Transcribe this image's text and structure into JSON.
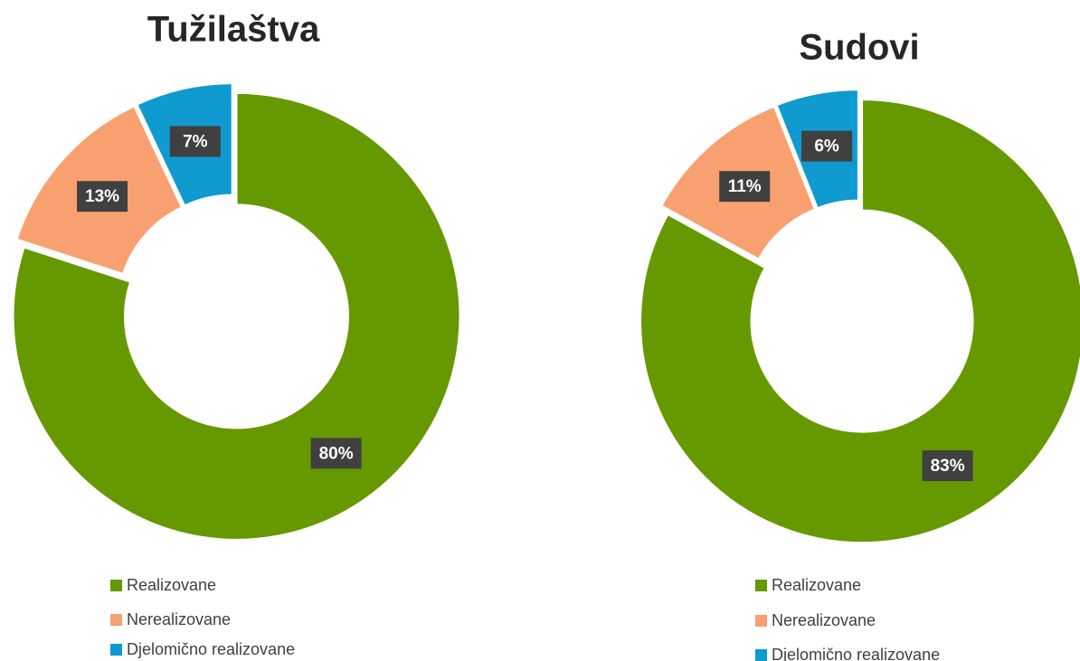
{
  "chart_data": [
    {
      "type": "pie",
      "title": "Tužilaštva",
      "categories": [
        "Realizovane",
        "Nerealizovane",
        "Djelomično realizovane"
      ],
      "values": [
        80,
        13,
        7
      ],
      "value_labels": [
        "80%",
        "13%",
        "7%"
      ],
      "colors": [
        "#669900",
        "#f9a070",
        "#0f9ad0"
      ],
      "donut": true
    },
    {
      "type": "pie",
      "title": "Sudovi",
      "categories": [
        "Realizovane",
        "Nerealizovane",
        "Djelomično realizovane"
      ],
      "values": [
        83,
        11,
        6
      ],
      "value_labels": [
        "83%",
        "11%",
        "6%"
      ],
      "colors": [
        "#669900",
        "#f9a070",
        "#0f9ad0"
      ],
      "donut": true
    }
  ]
}
